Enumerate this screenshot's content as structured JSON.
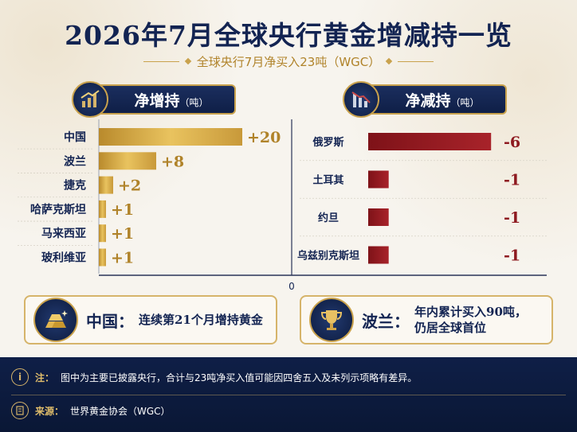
{
  "title": "2026年7月全球央行黄金增减持一览",
  "subtitle": "全球央行7月净买入23吨（WGC）",
  "left_panel": {
    "title": "净增持",
    "unit": "（吨）",
    "icon": "bar-chart-up-icon"
  },
  "right_panel": {
    "title": "净减持",
    "unit": "（吨）",
    "icon": "bar-chart-down-icon"
  },
  "chart_data": {
    "type": "bar",
    "axis_zero_label": "0",
    "increases": {
      "categories": [
        "中国",
        "波兰",
        "捷克",
        "哈萨克斯坦",
        "马来西亚",
        "玻利维亚"
      ],
      "values": [
        20,
        8,
        2,
        1,
        1,
        1
      ],
      "labels": [
        "+20",
        "+8",
        "+2",
        "+1",
        "+1",
        "+1"
      ],
      "color": "#d4a843"
    },
    "decreases": {
      "categories": [
        "俄罗斯",
        "土耳其",
        "约旦",
        "乌兹别克斯坦"
      ],
      "values": [
        -6,
        -1,
        -1,
        -1
      ],
      "labels": [
        "-6",
        "-1",
        "-1",
        "-1"
      ],
      "color": "#9b1c22"
    }
  },
  "callouts": [
    {
      "label": "中国：",
      "text": "连续第21个月增持黄金",
      "icon": "gold-bars-icon"
    },
    {
      "label": "波兰：",
      "text_line1": "年内累计买入90吨，",
      "text_line2": "仍居全球首位",
      "icon": "trophy-icon"
    }
  ],
  "footer": {
    "note_label": "注：",
    "note_text": "图中为主要已披露央行，合计与23吨净买入值可能因四舍五入及未列示项略有差异。",
    "source_label": "来源：",
    "source_text": "世界黄金协会（WGC）",
    "note_icon": "info-icon",
    "source_icon": "document-icon"
  }
}
